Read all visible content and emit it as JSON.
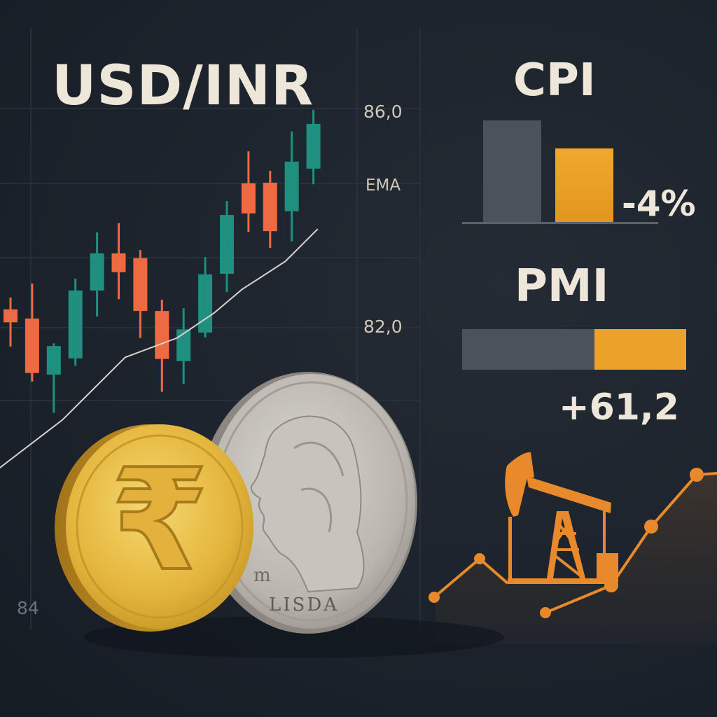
{
  "usdinr": {
    "title": "USD/INR",
    "y_labels": [
      "86,0",
      "EMA",
      "82,0"
    ],
    "bottom_label": "84",
    "colors": {
      "up": "#1f8f80",
      "down": "#ee6a43",
      "ema": "#d8d4cc"
    },
    "chart_data": {
      "type": "candlestick",
      "ylim": [
        79.4,
        86.0
      ],
      "candles": [
        {
          "open": 82.34,
          "high": 82.56,
          "low": 81.65,
          "close": 82.1
        },
        {
          "open": 82.17,
          "high": 82.82,
          "low": 81.0,
          "close": 81.16
        },
        {
          "open": 81.13,
          "high": 81.71,
          "low": 80.42,
          "close": 81.66
        },
        {
          "open": 81.43,
          "high": 82.91,
          "low": 81.29,
          "close": 82.69
        },
        {
          "open": 82.69,
          "high": 83.77,
          "low": 82.21,
          "close": 83.38
        },
        {
          "open": 83.38,
          "high": 83.94,
          "low": 82.53,
          "close": 83.03
        },
        {
          "open": 83.29,
          "high": 83.44,
          "low": 81.81,
          "close": 82.31
        },
        {
          "open": 82.31,
          "high": 82.52,
          "low": 80.81,
          "close": 81.42
        },
        {
          "open": 81.38,
          "high": 82.36,
          "low": 80.96,
          "close": 81.97
        },
        {
          "open": 81.91,
          "high": 83.31,
          "low": 81.82,
          "close": 82.99
        },
        {
          "open": 83.0,
          "high": 84.35,
          "low": 82.66,
          "close": 84.09
        },
        {
          "open": 84.68,
          "high": 85.27,
          "low": 83.78,
          "close": 84.12
        },
        {
          "open": 84.69,
          "high": 84.91,
          "low": 83.48,
          "close": 83.79
        },
        {
          "open": 84.16,
          "high": 85.64,
          "low": 83.6,
          "close": 85.08
        },
        {
          "open": 84.95,
          "high": 86.04,
          "low": 84.66,
          "close": 85.78
        }
      ],
      "ema": [
        [
          0.5,
          79.4
        ],
        [
          3.4,
          80.29
        ],
        [
          6.3,
          81.45
        ],
        [
          8.7,
          81.81
        ],
        [
          10.4,
          82.27
        ],
        [
          11.7,
          82.71
        ],
        [
          13.7,
          83.23
        ],
        [
          15.2,
          83.83
        ]
      ]
    }
  },
  "cpi": {
    "title": "CPI",
    "change": "-4%",
    "chart_data": {
      "type": "bar",
      "values": [
        146,
        106
      ],
      "colors": [
        "#4a525c",
        "#eca22a"
      ]
    }
  },
  "pmi": {
    "title": "PMI",
    "value": "+61,2",
    "bar_fill_fraction": 0.59,
    "colors": {
      "track": "#4a525c",
      "accent": "#eca22a"
    }
  },
  "oil": {
    "icon": "oil-pump-icon",
    "color": "#e88a2c",
    "chart_data": {
      "type": "line",
      "points": [
        [
          0,
          1.0
        ],
        [
          1,
          1.8
        ],
        [
          2,
          0.3
        ],
        [
          3,
          1.0
        ],
        [
          4,
          2.3
        ],
        [
          5,
          3.4
        ],
        [
          6,
          3.4
        ]
      ]
    }
  },
  "coins": {
    "rupee_symbol": "₹",
    "usd_coin_text": "LISDA",
    "usd_coin_small": "m"
  }
}
